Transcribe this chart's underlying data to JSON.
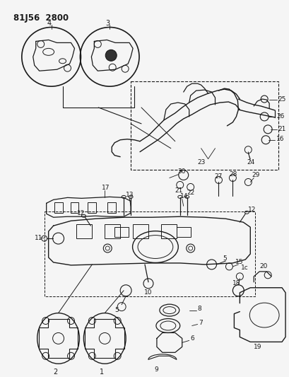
{
  "title": "81J56 2800",
  "bg_color": "#f5f5f5",
  "line_color": "#1a1a1a",
  "fig_width": 4.09,
  "fig_height": 5.33,
  "dpi": 100
}
